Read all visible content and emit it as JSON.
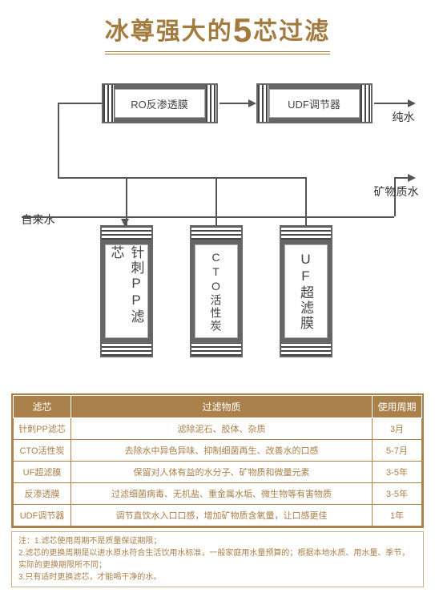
{
  "title": {
    "part1": "冰尊强大的",
    "bignum": "5",
    "part2": "芯过滤"
  },
  "diagram": {
    "top_filters": [
      {
        "label": "RO反渗透膜"
      },
      {
        "label": "UDF调节器"
      }
    ],
    "bottom_filters": [
      {
        "label": "针刺PP滤芯",
        "small": false
      },
      {
        "label": "CTO活性炭",
        "small": true
      },
      {
        "label": "UF超滤膜",
        "small": false
      }
    ],
    "labels": {
      "input": "自来水",
      "pure": "纯水",
      "mineral": "矿物质水"
    },
    "colors": {
      "stroke": "#555555",
      "box_border": "#666666",
      "accent": "#a37b3f"
    }
  },
  "table": {
    "headers": [
      "滤芯",
      "过滤物质",
      "使用周期"
    ],
    "rows": [
      [
        "针刺PP滤芯",
        "滤除泥石、胶体、杂质",
        "3月"
      ],
      [
        "CTO活性炭",
        "去除水中异色异味、抑制细菌再生、改善水的口感",
        "5-7月"
      ],
      [
        "UF超滤膜",
        "保留对人体有益的水分子、矿物质和微量元素",
        "3-5年"
      ],
      [
        "反渗透膜",
        "过滤细菌病毒、无机盐、重金属水垢、微生物等有害物质",
        "3-5年"
      ],
      [
        "UDF调节器",
        "调节直饮水入口口感，增加矿物质含氧量，让口感更佳",
        "1年"
      ]
    ],
    "colors": {
      "header_bg": "#aa814a",
      "header_fg": "#ffffff",
      "border": "#aa814a",
      "text": "#aa7f48"
    }
  },
  "note": {
    "prefix": "注：",
    "lines": [
      "1.滤芯使用周期不是质量保证期限；",
      "2.滤芯的更换周期是以进水原水符合生活饮用水标准，一般家庭用水量预算的；根据本地水质、用水量、季节，实际的更换期限所不同；",
      "3.只有适时更换滤芯，才能喝干净的水。"
    ]
  }
}
